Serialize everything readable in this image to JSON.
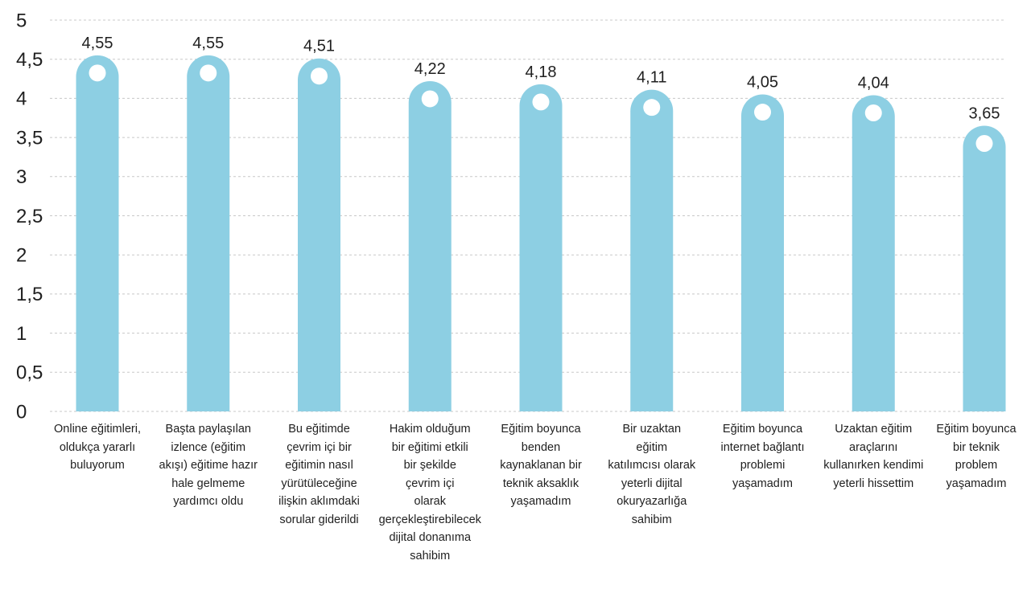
{
  "chart_data": {
    "type": "bar",
    "title": "",
    "xlabel": "",
    "ylabel": "",
    "ylim": [
      0,
      5
    ],
    "yticks": [
      "0",
      "0,5",
      "1",
      "1,5",
      "2",
      "2,5",
      "3",
      "3,5",
      "4",
      "4,5",
      "5"
    ],
    "grid": true,
    "bar_color": "#8dcfe3",
    "categories": [
      [
        "Online eğitimleri,",
        "oldukça yararlı",
        "buluyorum"
      ],
      [
        "Başta paylaşılan",
        "izlence (eğitim",
        "akışı) eğitime hazır",
        "hale gelmeme",
        "yardımcı oldu"
      ],
      [
        "Bu eğitimde",
        "çevrim içi bir",
        "eğitimin nasıl",
        "yürütüleceğine",
        "ilişkin aklımdaki",
        "sorular giderildi"
      ],
      [
        "Hakim olduğum",
        "bir eğitimi etkili",
        "bir şekilde",
        "çevrim içi",
        "olarak",
        "gerçekleştirebilecek",
        "dijital donanıma",
        "sahibim"
      ],
      [
        "Eğitim boyunca",
        "benden",
        "kaynaklanan bir",
        "teknik aksaklık",
        "yaşamadım"
      ],
      [
        "Bir uzaktan",
        "eğitim",
        "katılımcısı olarak",
        "yeterli dijital",
        "okuryazarlığa",
        "sahibim"
      ],
      [
        "Eğitim boyunca",
        "internet bağlantı",
        "problemi",
        "yaşamadım"
      ],
      [
        "Uzaktan eğitim",
        "araçlarını",
        "kullanırken kendimi",
        "yeterli hissettim"
      ],
      [
        "Eğitim boyunca",
        "bir teknik",
        "problem",
        "yaşamadım"
      ]
    ],
    "values": [
      4.55,
      4.55,
      4.51,
      4.22,
      4.18,
      4.11,
      4.05,
      4.04,
      3.65
    ],
    "value_labels": [
      "4,55",
      "4,55",
      "4,51",
      "4,22",
      "4,18",
      "4,11",
      "4,05",
      "4,04",
      "3,65"
    ]
  }
}
